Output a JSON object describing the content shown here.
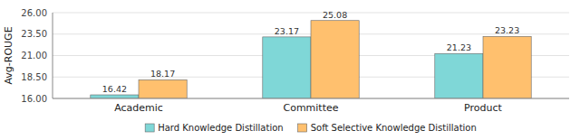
{
  "chart_data": {
    "type": "bar",
    "y_label": "Avg-ROUGE",
    "categories": [
      "Academic",
      "Committee",
      "Product"
    ],
    "series": [
      {
        "name": "Hard Knowledge Distillation",
        "color": "#7fd7d7",
        "values": [
          16.42,
          23.17,
          21.23
        ]
      },
      {
        "name": "Soft Selective Knowledge Distillation",
        "color": "#ffc06e",
        "values": [
          18.17,
          25.08,
          23.23
        ]
      }
    ],
    "ylim": [
      16.0,
      26.0
    ],
    "yticks": [
      {
        "value": 16.0,
        "label": "16.00"
      },
      {
        "value": 18.5,
        "label": "18.50"
      },
      {
        "value": 21.0,
        "label": "21.00"
      },
      {
        "value": 23.5,
        "label": "23.50"
      },
      {
        "value": 26.0,
        "label": "26.00"
      }
    ],
    "grid": true,
    "legend": "bottom",
    "data_labels": true
  }
}
